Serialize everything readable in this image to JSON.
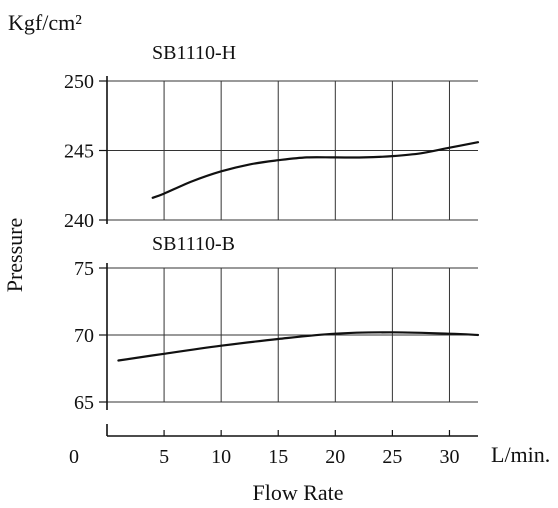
{
  "chart_data": [
    {
      "type": "line",
      "title": "SB1110-H",
      "y_unit": "Kgf/cm²",
      "ylabel": "Pressure",
      "ylim": [
        240,
        250
      ],
      "yticks": [
        240,
        245,
        250
      ],
      "xlim": [
        0,
        32.5
      ],
      "grid": true,
      "series": [
        {
          "x": [
            4,
            5,
            7.5,
            10,
            12.5,
            15,
            17.5,
            20,
            22.5,
            25,
            27.5,
            30,
            32.5
          ],
          "y": [
            241.6,
            241.9,
            242.8,
            243.5,
            244.0,
            244.3,
            244.5,
            244.5,
            244.5,
            244.6,
            244.8,
            245.2,
            245.6
          ]
        }
      ]
    },
    {
      "type": "line",
      "title": "SB1110-B",
      "ylim": [
        65,
        75
      ],
      "yticks": [
        65,
        70,
        75
      ],
      "xlim": [
        0,
        32.5
      ],
      "xticks": [
        0,
        5,
        10,
        15,
        20,
        25,
        30
      ],
      "x_unit": "L/min.",
      "xlabel": "Flow Rate",
      "grid": true,
      "series": [
        {
          "x": [
            1,
            5,
            10,
            15,
            20,
            25,
            30,
            32.5
          ],
          "y": [
            68.1,
            68.6,
            69.2,
            69.7,
            70.1,
            70.2,
            70.1,
            70.0
          ]
        }
      ]
    }
  ]
}
